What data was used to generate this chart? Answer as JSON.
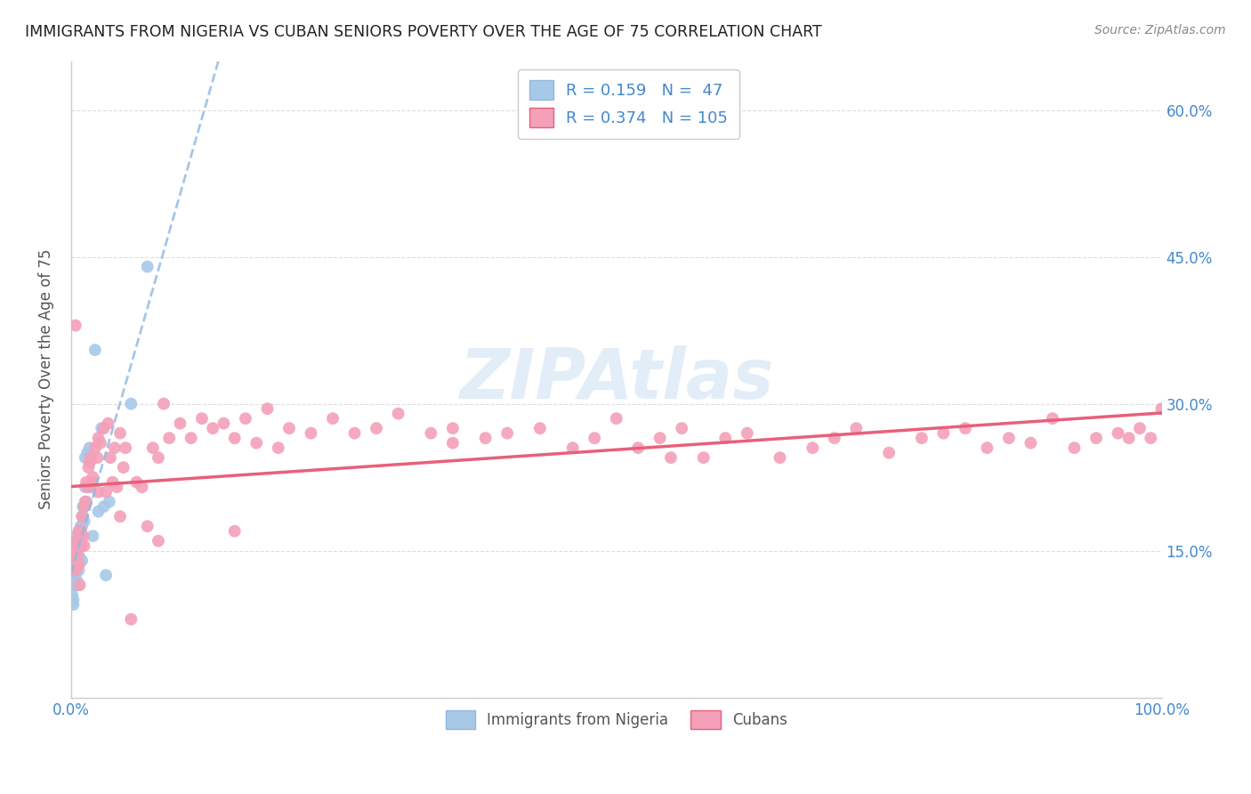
{
  "title": "IMMIGRANTS FROM NIGERIA VS CUBAN SENIORS POVERTY OVER THE AGE OF 75 CORRELATION CHART",
  "source": "Source: ZipAtlas.com",
  "ylabel": "Seniors Poverty Over the Age of 75",
  "xlim": [
    0,
    1.0
  ],
  "ylim": [
    0,
    0.65
  ],
  "xtick_vals": [
    0.0,
    1.0
  ],
  "xtick_labels": [
    "0.0%",
    "100.0%"
  ],
  "ytick_vals_right": [
    0.15,
    0.3,
    0.45,
    0.6
  ],
  "ytick_labels_right": [
    "15.0%",
    "30.0%",
    "45.0%",
    "60.0%"
  ],
  "nigeria_R": 0.159,
  "nigeria_N": 47,
  "cuba_R": 0.374,
  "cuba_N": 105,
  "nigeria_color": "#a8c8e8",
  "cuba_color": "#f4a0b8",
  "nigeria_line_color": "#90b8e0",
  "cuba_line_color": "#e8607a",
  "legend_label_nigeria": "Immigrants from Nigeria",
  "legend_label_cuba": "Cubans",
  "watermark": "ZIPAtlas",
  "nigeria_x": [
    0.001,
    0.002,
    0.002,
    0.003,
    0.003,
    0.003,
    0.004,
    0.004,
    0.004,
    0.004,
    0.005,
    0.005,
    0.005,
    0.005,
    0.005,
    0.006,
    0.006,
    0.006,
    0.007,
    0.007,
    0.007,
    0.008,
    0.008,
    0.009,
    0.009,
    0.01,
    0.01,
    0.011,
    0.011,
    0.012,
    0.012,
    0.013,
    0.013,
    0.014,
    0.015,
    0.016,
    0.017,
    0.018,
    0.02,
    0.022,
    0.025,
    0.028,
    0.03,
    0.032,
    0.035,
    0.055,
    0.07
  ],
  "nigeria_y": [
    0.105,
    0.095,
    0.1,
    0.12,
    0.13,
    0.145,
    0.115,
    0.13,
    0.145,
    0.155,
    0.12,
    0.135,
    0.14,
    0.155,
    0.165,
    0.115,
    0.135,
    0.155,
    0.13,
    0.145,
    0.165,
    0.14,
    0.165,
    0.155,
    0.175,
    0.14,
    0.175,
    0.185,
    0.195,
    0.18,
    0.195,
    0.215,
    0.245,
    0.2,
    0.25,
    0.215,
    0.255,
    0.215,
    0.165,
    0.355,
    0.19,
    0.275,
    0.195,
    0.125,
    0.2,
    0.3,
    0.44
  ],
  "cuba_x": [
    0.001,
    0.002,
    0.003,
    0.003,
    0.004,
    0.004,
    0.005,
    0.005,
    0.006,
    0.007,
    0.007,
    0.008,
    0.009,
    0.009,
    0.01,
    0.011,
    0.012,
    0.013,
    0.014,
    0.015,
    0.016,
    0.017,
    0.018,
    0.019,
    0.02,
    0.022,
    0.024,
    0.025,
    0.027,
    0.03,
    0.032,
    0.034,
    0.036,
    0.038,
    0.04,
    0.042,
    0.045,
    0.048,
    0.05,
    0.055,
    0.06,
    0.065,
    0.07,
    0.075,
    0.08,
    0.085,
    0.09,
    0.1,
    0.11,
    0.12,
    0.13,
    0.14,
    0.15,
    0.16,
    0.17,
    0.18,
    0.19,
    0.2,
    0.22,
    0.24,
    0.26,
    0.28,
    0.3,
    0.33,
    0.35,
    0.38,
    0.4,
    0.43,
    0.46,
    0.48,
    0.5,
    0.52,
    0.54,
    0.56,
    0.58,
    0.6,
    0.62,
    0.65,
    0.68,
    0.7,
    0.72,
    0.75,
    0.78,
    0.8,
    0.82,
    0.84,
    0.86,
    0.88,
    0.9,
    0.92,
    0.94,
    0.96,
    0.97,
    0.98,
    0.99,
    1.0,
    0.55,
    0.35,
    0.15,
    0.08,
    0.045,
    0.025,
    0.012,
    0.008,
    0.004
  ],
  "cuba_y": [
    0.145,
    0.15,
    0.135,
    0.155,
    0.13,
    0.155,
    0.14,
    0.16,
    0.145,
    0.135,
    0.17,
    0.155,
    0.155,
    0.17,
    0.185,
    0.165,
    0.195,
    0.2,
    0.22,
    0.215,
    0.235,
    0.24,
    0.245,
    0.22,
    0.225,
    0.255,
    0.245,
    0.265,
    0.26,
    0.275,
    0.21,
    0.28,
    0.245,
    0.22,
    0.255,
    0.215,
    0.27,
    0.235,
    0.255,
    0.08,
    0.22,
    0.215,
    0.175,
    0.255,
    0.245,
    0.3,
    0.265,
    0.28,
    0.265,
    0.285,
    0.275,
    0.28,
    0.265,
    0.285,
    0.26,
    0.295,
    0.255,
    0.275,
    0.27,
    0.285,
    0.27,
    0.275,
    0.29,
    0.27,
    0.275,
    0.265,
    0.27,
    0.275,
    0.255,
    0.265,
    0.285,
    0.255,
    0.265,
    0.275,
    0.245,
    0.265,
    0.27,
    0.245,
    0.255,
    0.265,
    0.275,
    0.25,
    0.265,
    0.27,
    0.275,
    0.255,
    0.265,
    0.26,
    0.285,
    0.255,
    0.265,
    0.27,
    0.265,
    0.275,
    0.265,
    0.295,
    0.245,
    0.26,
    0.17,
    0.16,
    0.185,
    0.21,
    0.155,
    0.115,
    0.38
  ]
}
